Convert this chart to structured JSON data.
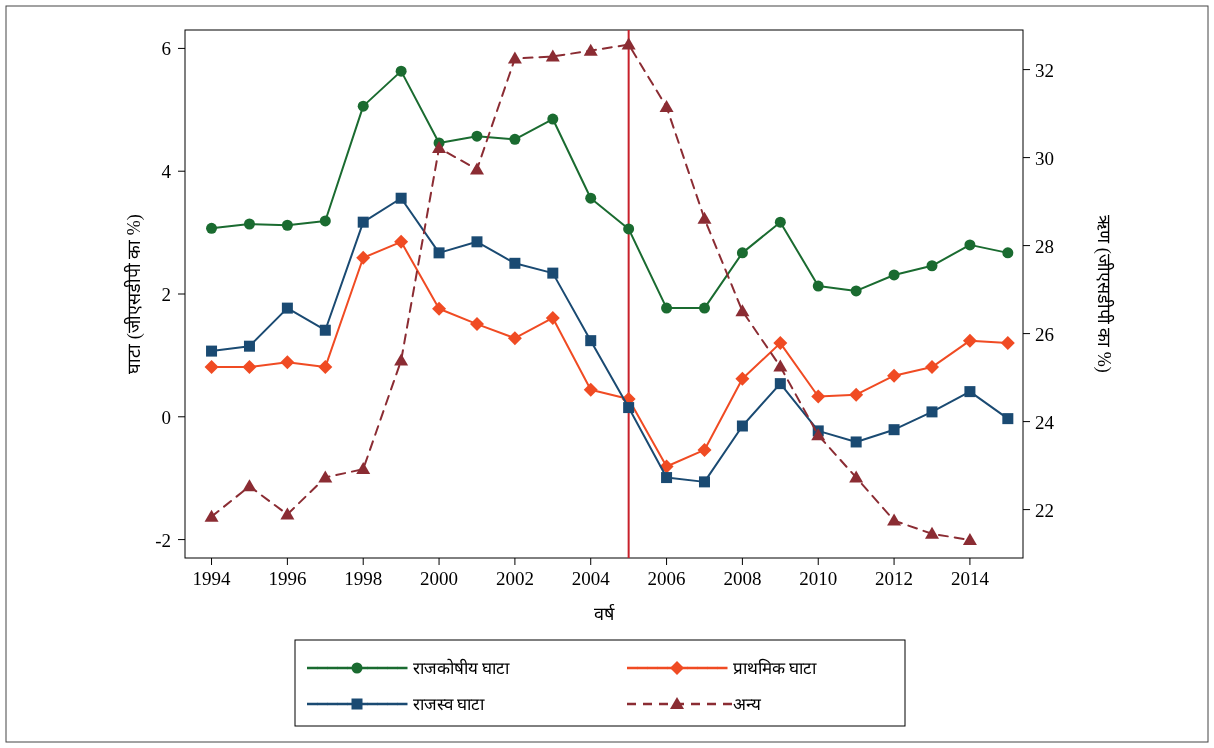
{
  "chart_data": {
    "type": "line",
    "xlabel": "वर्ष",
    "ylabel": "घाटा (जीएसडीपी का %)",
    "y2label": "ऋण (जीएसडीपी का %)",
    "legend": "bottom",
    "x": [
      1994,
      1995,
      1996,
      1997,
      1998,
      1999,
      2000,
      2001,
      2002,
      2003,
      2004,
      2005,
      2006,
      2007,
      2008,
      2009,
      2010,
      2011,
      2012,
      2013,
      2014,
      2015
    ],
    "xlim": [
      1993.3,
      2015.4
    ],
    "xticks": [
      1994,
      1996,
      1998,
      2000,
      2002,
      2004,
      2006,
      2008,
      2010,
      2012,
      2014
    ],
    "ylim": [
      -2.3,
      6.3
    ],
    "yticks": [
      -2,
      0,
      2,
      4,
      6
    ],
    "y2lim": [
      20.9,
      32.9
    ],
    "y2ticks": [
      22,
      24,
      26,
      28,
      30,
      32
    ],
    "ref_lines": [
      {
        "axis": "x",
        "value": 2005,
        "color": "#c8202a"
      }
    ],
    "series": [
      {
        "name": "राजकोषीय घाटा",
        "color": "#1a6b30",
        "marker": "circle",
        "line_style": "solid",
        "values": [
          3.07,
          3.14,
          3.12,
          3.19,
          5.06,
          5.63,
          4.46,
          4.57,
          4.52,
          4.85,
          3.56,
          3.06,
          1.77,
          1.77,
          2.67,
          3.17,
          2.13,
          2.05,
          2.31,
          2.46,
          2.8,
          2.67
        ]
      },
      {
        "name": "प्राथमिक घाटा",
        "color": "#f04b23",
        "marker": "diamond",
        "line_style": "solid",
        "values": [
          0.81,
          0.81,
          0.89,
          0.81,
          2.59,
          2.85,
          1.76,
          1.51,
          1.28,
          1.61,
          0.44,
          0.29,
          -0.81,
          -0.54,
          0.62,
          1.2,
          0.33,
          0.36,
          0.67,
          0.81,
          1.24,
          1.2
        ]
      },
      {
        "name": "राजस्व घाटा",
        "color": "#1a4a72",
        "marker": "square",
        "line_style": "solid",
        "values": [
          1.07,
          1.15,
          1.77,
          1.41,
          3.17,
          3.56,
          2.67,
          2.85,
          2.5,
          2.34,
          1.24,
          0.15,
          -0.99,
          -1.06,
          -0.15,
          0.54,
          -0.23,
          -0.41,
          -0.21,
          0.08,
          0.41,
          -0.03
        ]
      },
      {
        "name": "अन्य",
        "color": "#8b2c33",
        "marker": "triangle",
        "line_style": "dashed",
        "axis": "y2",
        "values": [
          21.84,
          22.53,
          21.89,
          22.73,
          22.92,
          25.39,
          30.22,
          29.73,
          32.25,
          32.3,
          32.43,
          32.57,
          31.15,
          28.61,
          26.51,
          25.25,
          23.69,
          22.73,
          21.75,
          21.45,
          21.31,
          null
        ]
      }
    ]
  }
}
